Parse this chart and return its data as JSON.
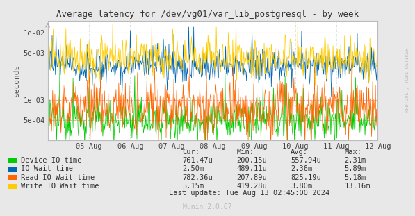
{
  "title": "Average latency for /dev/vg01/var_lib_postgresql - by week",
  "ylabel": "seconds",
  "fig_bg_color": "#e8e8e8",
  "plot_bg_color": "#ffffff",
  "grid_color": "#cccccc",
  "hline_color": "#ff9999",
  "ylim_low": 0.00025,
  "ylim_high": 0.015,
  "yticks": [
    0.0005,
    0.001,
    0.005,
    0.01
  ],
  "ytick_labels": [
    "5e-04",
    "1e-03",
    "5e-03",
    "1e-02"
  ],
  "x_ticks_labels": [
    "05 Aug",
    "06 Aug",
    "07 Aug",
    "08 Aug",
    "09 Aug",
    "10 Aug",
    "11 Aug",
    "12 Aug"
  ],
  "series": [
    {
      "name": "Device IO time",
      "color": "#00cc00",
      "base": 0.0005,
      "noise": 0.35,
      "max_clip": 0.004
    },
    {
      "name": "IO Wait time",
      "color": "#0066b2",
      "base": 0.0032,
      "noise": 0.28,
      "max_clip": 0.012
    },
    {
      "name": "Read IO Wait time",
      "color": "#ff6600",
      "base": 0.00075,
      "noise": 0.45,
      "max_clip": 0.005
    },
    {
      "name": "Write IO Wait time",
      "color": "#ffcc00",
      "base": 0.0042,
      "noise": 0.32,
      "max_clip": 0.015
    }
  ],
  "legend_cols": [
    "Cur:",
    "Min:",
    "Avg:",
    "Max:"
  ],
  "legend_data": [
    [
      "761.47u",
      "200.15u",
      "557.94u",
      "2.31m"
    ],
    [
      "2.50m",
      "489.11u",
      "2.36m",
      "5.89m"
    ],
    [
      "782.36u",
      "207.89u",
      "825.19u",
      "5.18m"
    ],
    [
      "5.15m",
      "419.28u",
      "3.80m",
      "13.16m"
    ]
  ],
  "last_update": "Last update: Tue Aug 13 02:45:00 2024",
  "munin_version": "Munin 2.0.67",
  "watermark": "RRDTOOL / TOBI OETIKER",
  "n_points": 600,
  "seed": 12345
}
